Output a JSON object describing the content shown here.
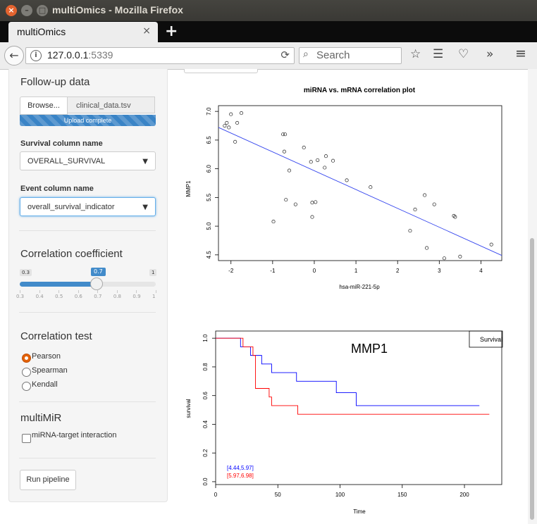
{
  "window": {
    "title": "multiOmics - Mozilla Firefox"
  },
  "tab": {
    "label": "multiOmics",
    "close": "×",
    "new_tab": "+"
  },
  "nav": {
    "url_host": "127.0.0.1",
    "url_port": ":5339",
    "search_placeholder": "Search"
  },
  "sidebar": {
    "followup_title": "Follow-up data",
    "browse_label": "Browse...",
    "file_name": "clinical_data.tsv",
    "upload_status": "Upload complete",
    "upload_progress": 1.0,
    "survival_col_label": "Survival column name",
    "survival_col_value": "OVERALL_SURVIVAL",
    "event_col_label": "Event column name",
    "event_col_value": "overall_survival_indicator",
    "corr_coef_title": "Correlation coefficient",
    "slider": {
      "min": "0.3",
      "max": "1",
      "value": "0.7",
      "value_num": 0.7,
      "min_num": 0.3,
      "max_num": 1.0,
      "ticks": [
        "0.3",
        "0.4",
        "0.5",
        "0.6",
        "0.7",
        "0.8",
        "0.9",
        "1"
      ]
    },
    "corr_test_title": "Correlation test",
    "corr_tests": [
      {
        "label": "Pearson",
        "checked": true
      },
      {
        "label": "Spearman",
        "checked": false
      },
      {
        "label": "Kendall",
        "checked": false
      }
    ],
    "multimir_title": "multiMiR",
    "multimir_option": "miRNA-target interaction",
    "run_label": "Run pipeline"
  },
  "chart_data": [
    {
      "type": "scatter",
      "title": "miRNA vs. mRNA correlation plot",
      "xlabel": "hsa-miR-221-5p",
      "ylabel": "MMP1",
      "xlim": [
        -2.3,
        4.5
      ],
      "ylim": [
        4.4,
        7.1
      ],
      "xticks": [
        -2,
        -1,
        0,
        1,
        2,
        3,
        4
      ],
      "yticks": [
        4.5,
        5.0,
        5.5,
        6.0,
        6.5,
        7.0
      ],
      "points": [
        [
          -2.15,
          6.75
        ],
        [
          -2.1,
          6.8
        ],
        [
          -2.05,
          6.72
        ],
        [
          -2.0,
          6.95
        ],
        [
          -1.9,
          6.47
        ],
        [
          -1.85,
          6.8
        ],
        [
          -1.75,
          6.97
        ],
        [
          -0.75,
          6.6
        ],
        [
          -0.7,
          6.6
        ],
        [
          -0.72,
          6.3
        ],
        [
          -0.6,
          5.97
        ],
        [
          -0.68,
          5.46
        ],
        [
          -0.45,
          5.38
        ],
        [
          -0.98,
          5.08
        ],
        [
          -0.25,
          6.37
        ],
        [
          -0.08,
          6.12
        ],
        [
          0.08,
          6.15
        ],
        [
          0.25,
          6.02
        ],
        [
          0.28,
          6.22
        ],
        [
          0.45,
          6.14
        ],
        [
          -0.05,
          5.41
        ],
        [
          0.03,
          5.42
        ],
        [
          -0.05,
          5.16
        ],
        [
          0.78,
          5.8
        ],
        [
          1.35,
          5.68
        ],
        [
          2.3,
          4.92
        ],
        [
          2.42,
          5.29
        ],
        [
          2.65,
          5.54
        ],
        [
          2.88,
          5.38
        ],
        [
          2.7,
          4.62
        ],
        [
          3.35,
          5.18
        ],
        [
          3.38,
          5.16
        ],
        [
          3.12,
          4.44
        ],
        [
          3.5,
          4.47
        ],
        [
          4.25,
          4.68
        ]
      ],
      "fit_line": {
        "x": [
          -2.3,
          4.5
        ],
        "y": [
          6.72,
          4.49
        ]
      }
    },
    {
      "type": "line",
      "title": "MMP1",
      "xlabel": "Time",
      "ylabel": "survival",
      "xlim": [
        0,
        230
      ],
      "ylim": [
        -0.02,
        1.05
      ],
      "xticks": [
        0,
        50,
        100,
        150,
        200
      ],
      "yticks": [
        0.0,
        0.2,
        0.4,
        0.6,
        0.8,
        1.0
      ],
      "legend": {
        "label": "Survival",
        "position": "top-right"
      },
      "annotations": [
        {
          "text": "[4.44,5.97]",
          "color": "#0000ff"
        },
        {
          "text": "[5.97,6.98]",
          "color": "#ff0000"
        }
      ],
      "series": [
        {
          "name": "[4.44,5.97]",
          "color": "#0000ff",
          "x": [
            0,
            20,
            20,
            28,
            28,
            37,
            37,
            45,
            45,
            65,
            65,
            97,
            97,
            113,
            113,
            212
          ],
          "y": [
            1.0,
            1.0,
            0.94,
            0.94,
            0.88,
            0.88,
            0.82,
            0.82,
            0.76,
            0.76,
            0.7,
            0.7,
            0.62,
            0.62,
            0.53,
            0.53
          ]
        },
        {
          "name": "[5.97,6.98]",
          "color": "#ff0000",
          "x": [
            0,
            22,
            22,
            30,
            30,
            32,
            32,
            43,
            43,
            45,
            45,
            66,
            66,
            220
          ],
          "y": [
            1.0,
            1.0,
            0.94,
            0.94,
            0.88,
            0.88,
            0.65,
            0.65,
            0.59,
            0.59,
            0.53,
            0.53,
            0.47,
            0.47
          ]
        }
      ]
    }
  ]
}
